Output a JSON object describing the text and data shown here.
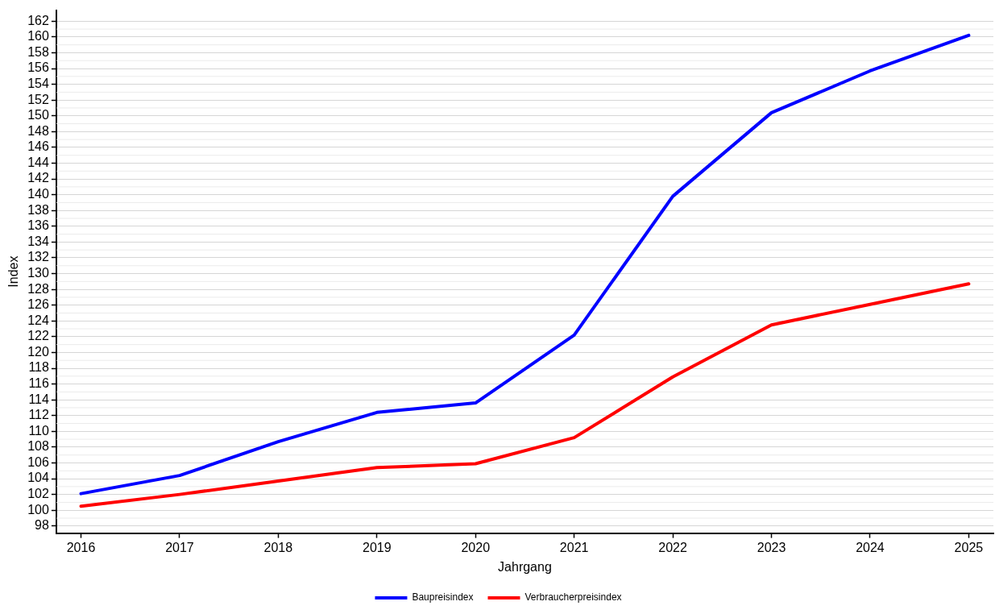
{
  "chart_data": {
    "type": "line",
    "xlabel": "Jahrgang",
    "ylabel": "Index",
    "x": [
      2016,
      2017,
      2018,
      2019,
      2020,
      2021,
      2022,
      2023,
      2024,
      2025
    ],
    "series": [
      {
        "name": "Baupreisindex",
        "color": "#0000ff",
        "values": [
          102.1,
          104.4,
          108.7,
          112.4,
          113.6,
          122.2,
          139.8,
          150.4,
          155.7,
          160.2
        ]
      },
      {
        "name": "Verbraucherpreisindex",
        "color": "#ff0000",
        "values": [
          100.5,
          102.0,
          103.7,
          105.4,
          105.9,
          109.2,
          116.9,
          123.5,
          126.1,
          128.7
        ]
      }
    ],
    "xlim": [
      2015.75,
      2025.25
    ],
    "xticks": [
      2016,
      2017,
      2018,
      2019,
      2020,
      2021,
      2022,
      2023,
      2024,
      2025
    ],
    "ylim": [
      97.1,
      163.4
    ],
    "yticks": [
      98,
      100,
      102,
      104,
      106,
      108,
      110,
      112,
      114,
      116,
      118,
      120,
      122,
      124,
      126,
      128,
      130,
      132,
      134,
      136,
      138,
      140,
      142,
      144,
      146,
      148,
      150,
      152,
      154,
      156,
      158,
      160,
      162
    ],
    "grid": "y",
    "legend": "bottom",
    "marker": "none",
    "line_style": "solid"
  }
}
